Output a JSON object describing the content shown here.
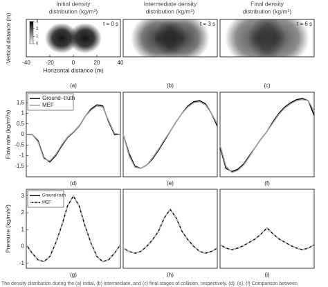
{
  "chart_data": [
    {
      "type": "heatmap",
      "title": [
        "Initial density",
        "distribution (kg/m³)"
      ],
      "annotation": "t = 0 s",
      "label": "(a)",
      "xlim": [
        -40,
        40
      ],
      "xticks": [
        -40,
        -20,
        0,
        20,
        40
      ],
      "xlabel": "Horizontal distance (m)",
      "ylabel": "Vertical distance (m)",
      "colorbar": {
        "lim": [
          0,
          3
        ],
        "ticks": [
          0,
          1,
          2,
          3
        ]
      }
    },
    {
      "type": "heatmap",
      "title": [
        "Intermediate density",
        "distribution (kg/m³)"
      ],
      "annotation": "t = 3 s",
      "label": "(b)"
    },
    {
      "type": "heatmap",
      "title": [
        "Final density",
        "distribution (kg/m³)"
      ],
      "annotation": "t = 6 s",
      "label": "(c)"
    },
    {
      "type": "line",
      "label": "(d)",
      "ylabel": "Flow rate (kg/m²/s)",
      "legend": "upper left",
      "x": [
        -40,
        -35,
        -30,
        -25,
        -20,
        -15,
        -10,
        -5,
        0,
        5,
        10,
        15,
        20,
        25,
        30,
        35,
        40
      ],
      "xlim": [
        -40,
        40
      ],
      "ylim": [
        -2,
        2
      ],
      "yticks": [
        -1.5,
        -1,
        -0.5,
        0,
        0.5,
        1,
        1.5
      ],
      "series": [
        {
          "name": "Ground–truth",
          "color": "#000000",
          "values": [
            0,
            0,
            -0.3,
            -1.1,
            -1.3,
            -1.0,
            -0.55,
            -0.15,
            0.1,
            0.4,
            0.85,
            1.2,
            1.4,
            1.35,
            0.6,
            0,
            0
          ]
        },
        {
          "name": "MEF",
          "color": "#a0a0a0",
          "values": [
            0,
            0,
            -0.35,
            -1.15,
            -1.25,
            -0.95,
            -0.5,
            -0.12,
            0.12,
            0.42,
            0.85,
            1.15,
            1.35,
            1.3,
            0.65,
            0.05,
            0
          ]
        }
      ]
    },
    {
      "type": "line",
      "label": "(e)",
      "x": [
        -40,
        -35,
        -30,
        -25,
        -20,
        -15,
        -10,
        -5,
        0,
        5,
        10,
        15,
        20,
        25,
        30,
        35,
        40
      ],
      "xlim": [
        -40,
        40
      ],
      "ylim": [
        -2,
        2
      ],
      "series": [
        {
          "color": "#000000",
          "values": [
            0,
            -0.9,
            -1.5,
            -1.6,
            -1.45,
            -1.15,
            -0.75,
            -0.3,
            0.15,
            0.6,
            1.0,
            1.35,
            1.55,
            1.6,
            1.45,
            1.0,
            0.4
          ]
        },
        {
          "color": "#a0a0a0",
          "values": [
            0,
            -1.0,
            -1.55,
            -1.6,
            -1.45,
            -1.1,
            -0.7,
            -0.25,
            0.15,
            0.6,
            1.0,
            1.3,
            1.5,
            1.55,
            1.4,
            1.0,
            0.5
          ]
        }
      ]
    },
    {
      "type": "line",
      "label": "(f)",
      "x": [
        -40,
        -35,
        -30,
        -25,
        -20,
        -15,
        -10,
        -5,
        0,
        5,
        10,
        15,
        20,
        25,
        30,
        35,
        40
      ],
      "xlim": [
        -40,
        40
      ],
      "ylim": [
        -2,
        2
      ],
      "series": [
        {
          "color": "#000000",
          "values": [
            -0.6,
            -1.6,
            -1.75,
            -1.65,
            -1.4,
            -1.0,
            -0.6,
            -0.2,
            0.15,
            0.6,
            1.0,
            1.3,
            1.5,
            1.65,
            1.7,
            1.6,
            0.9
          ]
        },
        {
          "color": "#a0a0a0",
          "values": [
            -0.5,
            -1.5,
            -1.8,
            -1.7,
            -1.45,
            -1.05,
            -0.6,
            -0.2,
            0.15,
            0.55,
            0.95,
            1.25,
            1.45,
            1.6,
            1.65,
            1.6,
            1.1
          ]
        }
      ]
    },
    {
      "type": "line",
      "label": "(g)",
      "ylabel": "Pressure (kg/m/s²)",
      "legend": "upper left",
      "x": [
        -40,
        -35,
        -30,
        -25,
        -20,
        -15,
        -10,
        -5,
        0,
        5,
        10,
        15,
        20,
        25,
        30,
        35,
        40
      ],
      "xlim": [
        -40,
        40
      ],
      "ylim": [
        -1.3,
        3.4
      ],
      "yticks": [
        -1,
        0,
        1,
        2,
        3
      ],
      "series": [
        {
          "name": "Ground-truth",
          "color": "#000000",
          "values": [
            0.1,
            -0.4,
            -0.8,
            -0.9,
            -0.6,
            0.2,
            1.2,
            2.4,
            3.0,
            2.4,
            1.2,
            0.2,
            -0.6,
            -0.9,
            -0.8,
            -0.4,
            0.1
          ]
        },
        {
          "name": "MEF",
          "color": "#dddddd",
          "dashed": true,
          "values": [
            0.1,
            -0.4,
            -0.8,
            -0.9,
            -0.6,
            0.2,
            1.2,
            2.4,
            3.0,
            2.4,
            1.2,
            0.2,
            -0.6,
            -0.9,
            -0.8,
            -0.4,
            0.1
          ]
        }
      ]
    },
    {
      "type": "line",
      "label": "(h)",
      "x": [
        -40,
        -35,
        -30,
        -25,
        -20,
        -15,
        -10,
        -5,
        0,
        5,
        10,
        15,
        20,
        25,
        30,
        35,
        40
      ],
      "xlim": [
        -40,
        40
      ],
      "ylim": [
        -1.3,
        3.4
      ],
      "series": [
        {
          "color": "#000000",
          "values": [
            -0.1,
            -0.3,
            -0.4,
            -0.3,
            0,
            0.4,
            0.9,
            1.7,
            2.2,
            1.7,
            0.9,
            0.4,
            0,
            -0.3,
            -0.4,
            -0.3,
            -0.1
          ]
        },
        {
          "color": "#dddddd",
          "dashed": true,
          "values": [
            -0.1,
            -0.3,
            -0.4,
            -0.3,
            0,
            0.4,
            0.9,
            1.7,
            2.2,
            1.7,
            0.9,
            0.4,
            0,
            -0.3,
            -0.4,
            -0.3,
            -0.1
          ]
        }
      ]
    },
    {
      "type": "line",
      "label": "(i)",
      "x": [
        -40,
        -35,
        -30,
        -25,
        -20,
        -15,
        -10,
        -5,
        0,
        5,
        10,
        15,
        20,
        25,
        30,
        35,
        40
      ],
      "xlim": [
        -40,
        40
      ],
      "ylim": [
        -1.3,
        3.4
      ],
      "series": [
        {
          "color": "#000000",
          "values": [
            0.1,
            -0.1,
            -0.2,
            -0.1,
            0.05,
            0.25,
            0.45,
            0.75,
            1.1,
            0.75,
            0.45,
            0.25,
            0.05,
            -0.1,
            -0.2,
            -0.1,
            0.1
          ]
        },
        {
          "color": "#dddddd",
          "dashed": true,
          "values": [
            0.1,
            -0.1,
            -0.2,
            -0.1,
            0.05,
            0.25,
            0.45,
            0.75,
            1.1,
            0.75,
            0.45,
            0.25,
            0.05,
            -0.1,
            -0.2,
            -0.1,
            0.1
          ]
        }
      ]
    }
  ],
  "caption": "The density distribution during the (a) initial, (b) intermediate, and (c) final stages of collision, respectively. (d), (e), (f) Comparison between"
}
